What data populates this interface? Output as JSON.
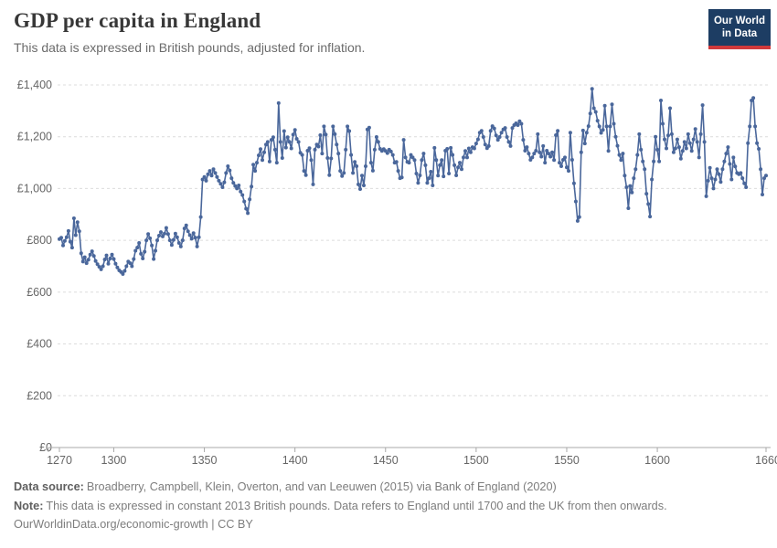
{
  "header": {
    "title": "GDP per capita in England",
    "subtitle": "This data is expressed in British pounds, adjusted for inflation.",
    "logo": {
      "line1": "Our World",
      "line2": "in Data",
      "bg_color": "#1d3d63",
      "accent_color": "#d0393b"
    }
  },
  "footer": {
    "source_label": "Data source:",
    "source_text": "Broadberry, Campbell, Klein, Overton, and van Leeuwen (2015) via Bank of England (2020)",
    "note_label": "Note:",
    "note_text": "This data is expressed in constant 2013 British pounds. Data refers to England until 1700 and the UK from then onwards.",
    "license_text": "OurWorldinData.org/economic-growth | CC BY"
  },
  "chart_data": {
    "type": "line",
    "title": "GDP per capita in England",
    "unit": "£",
    "line_color": "#4a679b",
    "markers": true,
    "grid": true,
    "xlim": [
      1270,
      1660
    ],
    "ylim": [
      0,
      1400
    ],
    "x_ticks": [
      1270,
      1300,
      1350,
      1400,
      1450,
      1500,
      1550,
      1600,
      1660
    ],
    "y_ticks": [
      {
        "value": 0,
        "label": "£0"
      },
      {
        "value": 200,
        "label": "£200"
      },
      {
        "value": 400,
        "label": "£400"
      },
      {
        "value": 600,
        "label": "£600"
      },
      {
        "value": 800,
        "label": "£800"
      },
      {
        "value": 1000,
        "label": "£1,000"
      },
      {
        "value": 1200,
        "label": "£1,200"
      },
      {
        "value": 1400,
        "label": "£1,400"
      }
    ],
    "x_start": 1270,
    "x_step": 1,
    "series": [
      {
        "name": "England",
        "values": [
          805,
          810,
          780,
          798,
          812,
          836,
          795,
          772,
          885,
          820,
          870,
          835,
          750,
          718,
          735,
          712,
          725,
          745,
          758,
          740,
          720,
          708,
          698,
          688,
          700,
          726,
          742,
          710,
          730,
          745,
          728,
          710,
          695,
          684,
          678,
          670,
          682,
          700,
          718,
          712,
          700,
          728,
          760,
          772,
          790,
          748,
          730,
          756,
          800,
          824,
          808,
          780,
          728,
          760,
          800,
          818,
          832,
          815,
          826,
          848,
          824,
          800,
          782,
          802,
          826,
          812,
          790,
          776,
          800,
          846,
          858,
          835,
          820,
          806,
          828,
          810,
          776,
          812,
          890,
          1035,
          1045,
          1030,
          1055,
          1068,
          1050,
          1075,
          1060,
          1045,
          1030,
          1018,
          1005,
          1024,
          1060,
          1086,
          1070,
          1040,
          1022,
          1010,
          1000,
          1012,
          988,
          975,
          950,
          922,
          905,
          958,
          1008,
          1092,
          1068,
          1100,
          1128,
          1152,
          1110,
          1140,
          1170,
          1180,
          1104,
          1188,
          1198,
          1150,
          1100,
          1330,
          1180,
          1118,
          1222,
          1158,
          1198,
          1180,
          1155,
          1208,
          1226,
          1192,
          1180,
          1138,
          1130,
          1068,
          1052,
          1146,
          1156,
          1110,
          1016,
          1150,
          1170,
          1162,
          1206,
          1135,
          1240,
          1208,
          1118,
          1052,
          1116,
          1240,
          1210,
          1170,
          1135,
          1068,
          1048,
          1060,
          1150,
          1240,
          1222,
          1130,
          1060,
          1103,
          1086,
          1016,
          998,
          1050,
          1012,
          1086,
          1228,
          1235,
          1100,
          1069,
          1150,
          1199,
          1180,
          1153,
          1145,
          1152,
          1145,
          1137,
          1150,
          1143,
          1130,
          1100,
          1103,
          1068,
          1040,
          1043,
          1188,
          1120,
          1103,
          1100,
          1130,
          1120,
          1110,
          1058,
          1022,
          1051,
          1110,
          1135,
          1090,
          1022,
          1040,
          1065,
          1012,
          1157,
          1110,
          1050,
          1090,
          1110,
          1047,
          1146,
          1153,
          1058,
          1157,
          1130,
          1090,
          1051,
          1082,
          1100,
          1075,
          1120,
          1145,
          1120,
          1155,
          1140,
          1160,
          1155,
          1174,
          1190,
          1216,
          1223,
          1199,
          1170,
          1156,
          1164,
          1223,
          1241,
          1232,
          1205,
          1188,
          1199,
          1216,
          1228,
          1234,
          1199,
          1180,
          1164,
          1234,
          1245,
          1252,
          1245,
          1260,
          1250,
          1188,
          1146,
          1160,
          1135,
          1111,
          1120,
          1135,
          1146,
          1210,
          1140,
          1123,
          1164,
          1100,
          1146,
          1135,
          1123,
          1140,
          1110,
          1206,
          1223,
          1100,
          1086,
          1111,
          1120,
          1082,
          1068,
          1216,
          1111,
          1020,
          950,
          875,
          890,
          1140,
          1224,
          1174,
          1216,
          1241,
          1290,
          1385,
          1310,
          1296,
          1262,
          1240,
          1215,
          1226,
          1320,
          1240,
          1145,
          1240,
          1325,
          1250,
          1200,
          1165,
          1130,
          1110,
          1135,
          1050,
          1005,
          924,
          1010,
          985,
          1040,
          1075,
          1130,
          1210,
          1150,
          1105,
          1075,
          980,
          940,
          892,
          1035,
          1105,
          1200,
          1150,
          1105,
          1340,
          1250,
          1190,
          1155,
          1205,
          1310,
          1210,
          1140,
          1155,
          1190,
          1160,
          1115,
          1145,
          1180,
          1155,
          1210,
          1175,
          1145,
          1190,
          1230,
          1180,
          1120,
          1210,
          1322,
          1180,
          970,
          1030,
          1080,
          1040,
          1000,
          1035,
          1075,
          1055,
          1025,
          1075,
          1105,
          1135,
          1160,
          1095,
          1035,
          1120,
          1085,
          1060,
          1055,
          1060,
          1040,
          1020,
          1005,
          1175,
          1240,
          1340,
          1350,
          1240,
          1175,
          1153,
          1075,
          977,
          1040,
          1050
        ]
      }
    ]
  }
}
